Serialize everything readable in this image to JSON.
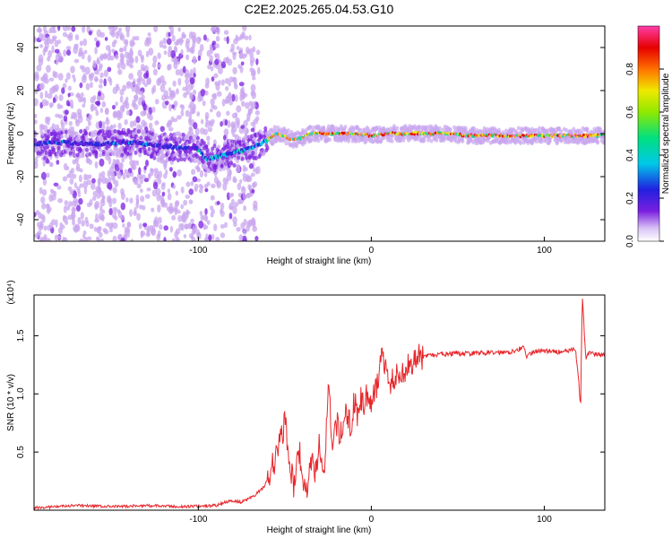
{
  "title": "C2E2.2025.265.04.53.G10",
  "colors": {
    "snr_line": "#e8262b",
    "spectrogram_palette": [
      "#ffffff",
      "#c9a7ef",
      "#7a1fe0",
      "#2b2bd8",
      "#00c8e8",
      "#00e080",
      "#f0e800",
      "#ff7000",
      "#e60000",
      "#ff3ca8"
    ]
  },
  "chart_data": [
    {
      "type": "heatmap",
      "xlabel": "Height of straight line (km)",
      "ylabel": "Frequency (Hz)",
      "xlim": [
        -195,
        135
      ],
      "ylim": [
        -50,
        50
      ],
      "x_ticks": [
        -100,
        0,
        100
      ],
      "y_ticks": [
        -40,
        -20,
        0,
        20,
        40
      ],
      "colorbar": {
        "label": "Normalized spectral amplitude",
        "range": [
          0,
          1
        ],
        "ticks": [
          "0.0",
          "0.2",
          "0.4",
          "0.6",
          "0.8"
        ]
      },
      "ridge": {
        "x": [
          -195,
          -180,
          -160,
          -140,
          -120,
          -100,
          -95,
          -90,
          -80,
          -70,
          -60,
          -55,
          -50,
          -45,
          -40,
          -35,
          -30,
          -20,
          -10,
          0,
          10,
          20,
          40,
          60,
          80,
          100,
          120,
          135
        ],
        "frequency": [
          -5,
          -4,
          -5,
          -4,
          -6,
          -7,
          -12,
          -11,
          -9,
          -7,
          -3,
          0,
          -1,
          -3,
          -2,
          0,
          0,
          0,
          0,
          -1,
          0,
          0,
          0,
          -1,
          -1,
          -1,
          -1,
          -1
        ]
      },
      "noise_region_x": [
        -195,
        -65
      ]
    },
    {
      "type": "line",
      "xlabel": "Height of straight line (km)",
      "ylabel": "SNR (10 * v/v)",
      "y_multiplier": "(x10⁴)",
      "xlim": [
        -195,
        135
      ],
      "ylim": [
        0,
        1.85
      ],
      "x_ticks": [
        -100,
        0,
        100
      ],
      "y_ticks": [
        0.5,
        1.0,
        1.5
      ],
      "series": [
        {
          "x": [
            -195,
            -170,
            -150,
            -130,
            -110,
            -90,
            -82,
            -75,
            -68,
            -62,
            -58,
            -54,
            -50,
            -47,
            -45,
            -42,
            -40,
            -37,
            -35,
            -32,
            -30,
            -27,
            -25,
            -22,
            -20,
            -18,
            -15,
            -12,
            -10,
            -8,
            -6,
            -4,
            -2,
            0,
            3,
            6,
            10,
            15,
            20,
            25,
            30,
            40,
            60,
            80,
            88,
            90,
            95,
            110,
            118,
            120,
            121,
            122,
            124,
            126,
            130,
            135
          ],
          "y": [
            0.02,
            0.04,
            0.03,
            0.04,
            0.03,
            0.04,
            0.08,
            0.07,
            0.12,
            0.2,
            0.35,
            0.5,
            0.75,
            0.4,
            0.2,
            0.55,
            0.3,
            0.15,
            0.45,
            0.3,
            0.6,
            0.25,
            1.05,
            0.55,
            0.75,
            0.6,
            0.9,
            0.7,
            0.95,
            0.8,
            1.0,
            0.85,
            1.05,
            0.95,
            1.05,
            1.35,
            1.1,
            1.15,
            1.22,
            1.3,
            1.32,
            1.34,
            1.35,
            1.36,
            1.4,
            1.32,
            1.37,
            1.36,
            1.38,
            1.1,
            0.88,
            1.85,
            1.3,
            1.36,
            1.34,
            1.33
          ]
        }
      ]
    }
  ]
}
